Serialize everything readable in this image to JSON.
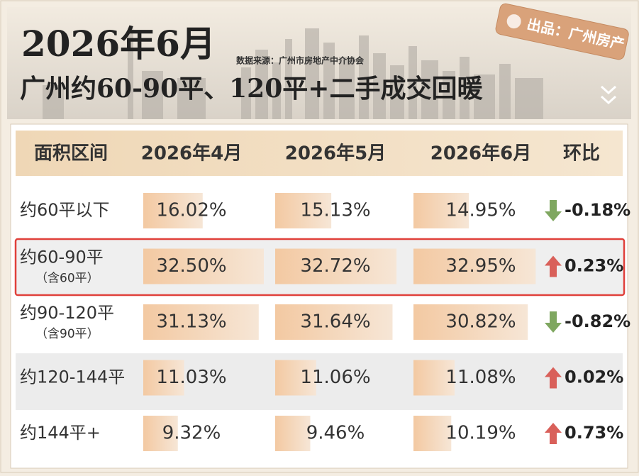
{
  "header": {
    "title": "2026年6月",
    "source": "数据来源：广州市房地产中介协会",
    "subtitle": "广州约60-90平、120平+二手成交回暖",
    "badge": "出品：广州房产"
  },
  "table": {
    "columns": [
      "面积区间",
      "2026年4月",
      "2026年5月",
      "2026年6月",
      "环比"
    ],
    "rows": [
      {
        "area": "约60平以下",
        "values": [
          "16.02%",
          "15.13%",
          "14.95%"
        ],
        "change": "-0.18%"
      },
      {
        "area": "约60-90平",
        "note": "（含60平）",
        "values": [
          "32.50%",
          "32.72%",
          "32.95%"
        ],
        "change": "0.23%"
      },
      {
        "area": "约90-120平",
        "note": "（含90平）",
        "values": [
          "31.13%",
          "31.64%",
          "30.82%"
        ],
        "change": "-0.82%"
      },
      {
        "area": "约120-144平",
        "values": [
          "11.03%",
          "11.06%",
          "11.08%"
        ],
        "change": "0.02%"
      },
      {
        "area": "约144平+",
        "values": [
          "9.32%",
          "9.46%",
          "10.19%"
        ],
        "change": "0.73%"
      }
    ]
  }
}
